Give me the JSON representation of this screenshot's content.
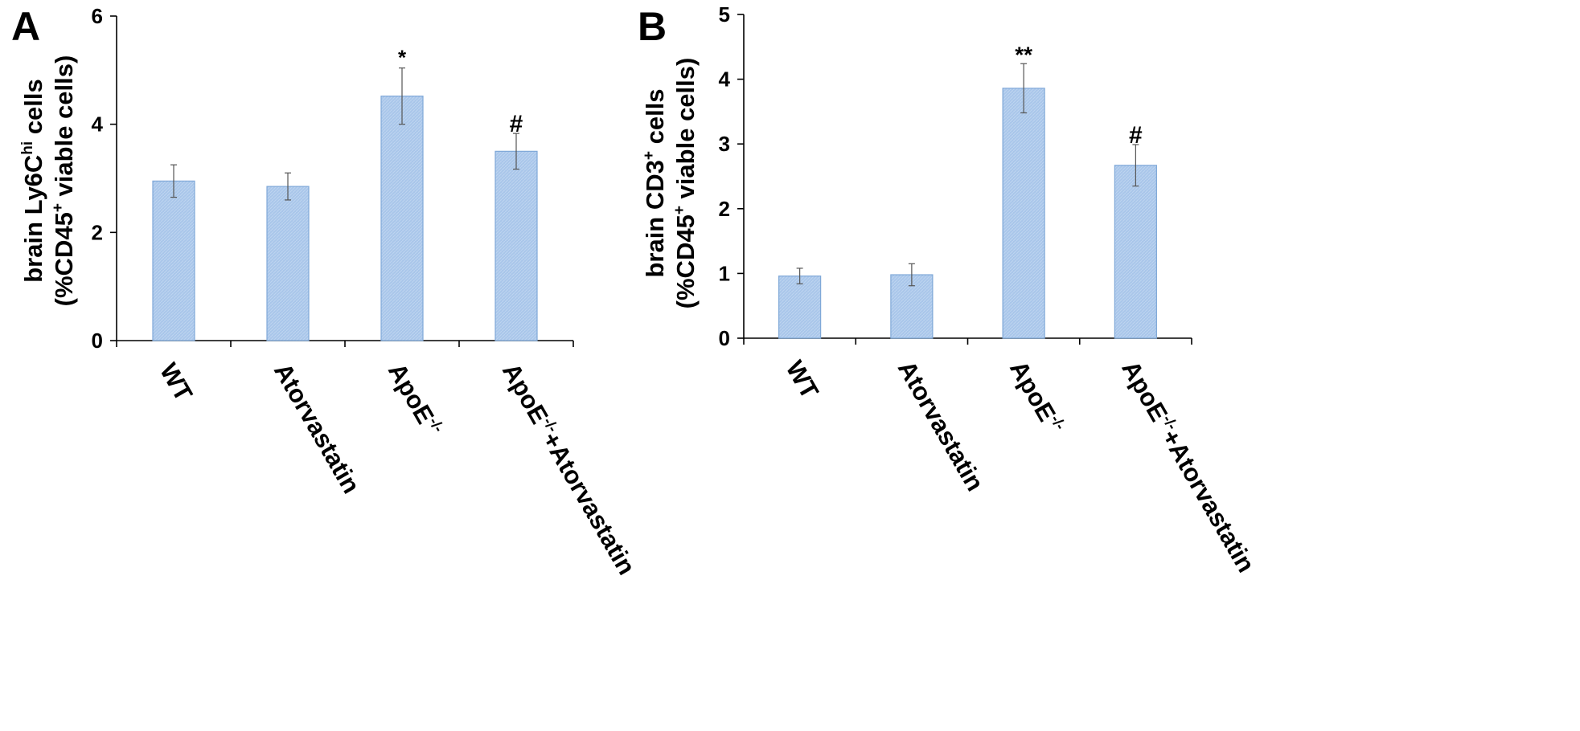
{
  "chart_data": [
    {
      "type": "bar",
      "panel": "A",
      "ylabel": {
        "line1": {
          "before": "brain Ly6C",
          "sup": "hi",
          "after": " cells"
        },
        "line2": {
          "before": "(%CD45",
          "sup": "+",
          "after": " viable cells)"
        }
      },
      "ylim": [
        0,
        6
      ],
      "yticks": [
        "0",
        "2",
        "4",
        "6"
      ],
      "categories": [
        {
          "text": "WT",
          "sup": "",
          "after": ""
        },
        {
          "text": "Atorvastatin",
          "sup": "",
          "after": ""
        },
        {
          "text": "ApoE",
          "sup": "-/-",
          "after": ""
        },
        {
          "text": "ApoE",
          "sup": "-/-",
          "after": "+Atorvastatin"
        }
      ],
      "values": [
        2.95,
        2.85,
        4.52,
        3.5
      ],
      "errors": [
        0.3,
        0.25,
        0.52,
        0.33
      ],
      "annotations": [
        "",
        "",
        "*",
        "#"
      ],
      "bar_color": "#a9c6ea",
      "grid": false
    },
    {
      "type": "bar",
      "panel": "B",
      "ylabel": {
        "line1": {
          "before": "brain CD3",
          "sup": "+",
          "after": " cells"
        },
        "line2": {
          "before": "(%CD45",
          "sup": "+",
          "after": " viable cells)"
        }
      },
      "ylim": [
        0,
        5
      ],
      "yticks": [
        "0",
        "1",
        "2",
        "3",
        "4",
        "5"
      ],
      "categories": [
        {
          "text": "WT",
          "sup": "",
          "after": ""
        },
        {
          "text": "Atorvastatin",
          "sup": "",
          "after": ""
        },
        {
          "text": "ApoE",
          "sup": "-/-",
          "after": ""
        },
        {
          "text": "ApoE",
          "sup": "-/-",
          "after": "+Atorvastatin"
        }
      ],
      "values": [
        0.96,
        0.98,
        3.86,
        2.67
      ],
      "errors": [
        0.12,
        0.17,
        0.38,
        0.32
      ],
      "annotations": [
        "",
        "",
        "**",
        "#"
      ],
      "bar_color": "#a9c6ea",
      "grid": false
    }
  ]
}
